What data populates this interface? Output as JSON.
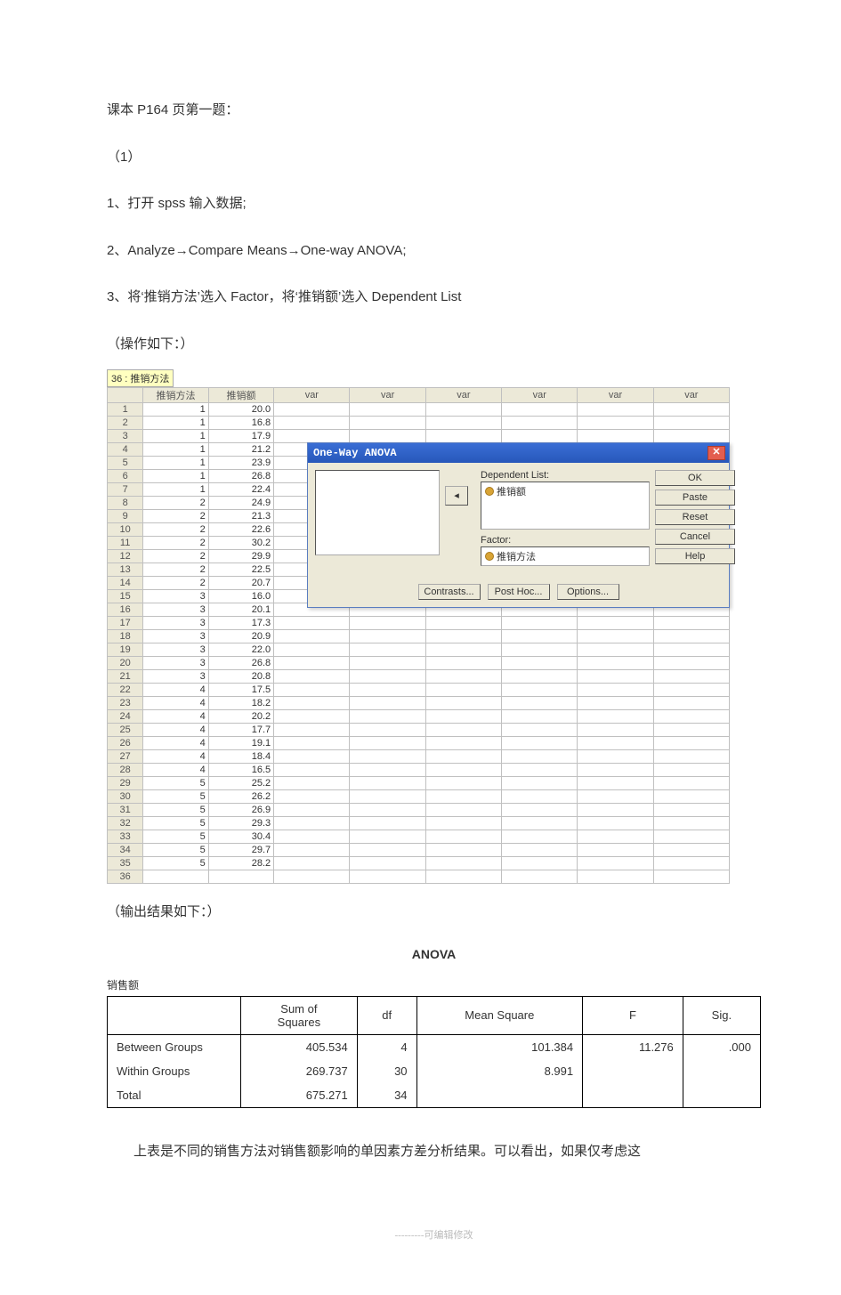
{
  "doc": {
    "line1": "课本 P164 页第一题：",
    "line2": "（1）",
    "line3": "1、打开 spss 输入数据;",
    "line4": "2、Analyze→Compare Means→One-way ANOVA;",
    "line5": "3、将‘推销方法’选入 Factor，将‘推销额’选入 Dependent List",
    "line6": "（操作如下：）",
    "result_label": "（输出结果如下：）",
    "anova_title": "ANOVA",
    "anova_sub": "销售额",
    "conclusion": "上表是不同的销售方法对销售额影响的单因素方差分析结果。可以看出，如果仅考虑这",
    "footer": "---------可编辑修改"
  },
  "spss": {
    "cell_label": "36 : 推销方法",
    "col_rownum": "",
    "col1": "推销方法",
    "col2": "推销额",
    "col_var": "var",
    "rows": [
      [
        "1",
        "1",
        "20.0"
      ],
      [
        "2",
        "1",
        "16.8"
      ],
      [
        "3",
        "1",
        "17.9"
      ],
      [
        "4",
        "1",
        "21.2"
      ],
      [
        "5",
        "1",
        "23.9"
      ],
      [
        "6",
        "1",
        "26.8"
      ],
      [
        "7",
        "1",
        "22.4"
      ],
      [
        "8",
        "2",
        "24.9"
      ],
      [
        "9",
        "2",
        "21.3"
      ],
      [
        "10",
        "2",
        "22.6"
      ],
      [
        "11",
        "2",
        "30.2"
      ],
      [
        "12",
        "2",
        "29.9"
      ],
      [
        "13",
        "2",
        "22.5"
      ],
      [
        "14",
        "2",
        "20.7"
      ],
      [
        "15",
        "3",
        "16.0"
      ],
      [
        "16",
        "3",
        "20.1"
      ],
      [
        "17",
        "3",
        "17.3"
      ],
      [
        "18",
        "3",
        "20.9"
      ],
      [
        "19",
        "3",
        "22.0"
      ],
      [
        "20",
        "3",
        "26.8"
      ],
      [
        "21",
        "3",
        "20.8"
      ],
      [
        "22",
        "4",
        "17.5"
      ],
      [
        "23",
        "4",
        "18.2"
      ],
      [
        "24",
        "4",
        "20.2"
      ],
      [
        "25",
        "4",
        "17.7"
      ],
      [
        "26",
        "4",
        "19.1"
      ],
      [
        "27",
        "4",
        "18.4"
      ],
      [
        "28",
        "4",
        "16.5"
      ],
      [
        "29",
        "5",
        "25.2"
      ],
      [
        "30",
        "5",
        "26.2"
      ],
      [
        "31",
        "5",
        "26.9"
      ],
      [
        "32",
        "5",
        "29.3"
      ],
      [
        "33",
        "5",
        "30.4"
      ],
      [
        "34",
        "5",
        "29.7"
      ],
      [
        "35",
        "5",
        "28.2"
      ],
      [
        "36",
        "",
        ""
      ]
    ]
  },
  "dialog": {
    "title": "One-Way ANOVA",
    "dep_label": "Dependent List:",
    "dep_item": "推销额",
    "factor_label": "Factor:",
    "factor_item": "推销方法",
    "buttons": {
      "ok": "OK",
      "paste": "Paste",
      "reset": "Reset",
      "cancel": "Cancel",
      "help": "Help",
      "contrasts": "Contrasts...",
      "posthoc": "Post Hoc...",
      "options": "Options..."
    },
    "arrow_left": "◂",
    "arrow_right": "▸"
  },
  "anova": {
    "columns": [
      "",
      "Sum of Squares",
      "df",
      "Mean Square",
      "F",
      "Sig."
    ],
    "rows": [
      [
        "Between Groups",
        "405.534",
        "4",
        "101.384",
        "11.276",
        ".000"
      ],
      [
        "Within Groups",
        "269.737",
        "30",
        "8.991",
        "",
        ""
      ],
      [
        "Total",
        "675.271",
        "34",
        "",
        "",
        ""
      ]
    ],
    "style": {
      "border_color": "#000000",
      "font_family": "Arial",
      "header_align": "center",
      "data_align_first": "left",
      "data_align_rest": "right",
      "background": "#ffffff"
    }
  },
  "colors": {
    "page_bg": "#ffffff",
    "spss_header_bg": "#ece9d8",
    "spss_cell_highlight": "#ffffc0",
    "spss_border": "#c0c0c0",
    "dialog_bg": "#ece9d8",
    "dialog_titlebar_start": "#3a6ed5",
    "dialog_titlebar_end": "#2757ba",
    "dialog_close_bg": "#e35e4f",
    "chip_icon": "#d9a435"
  }
}
